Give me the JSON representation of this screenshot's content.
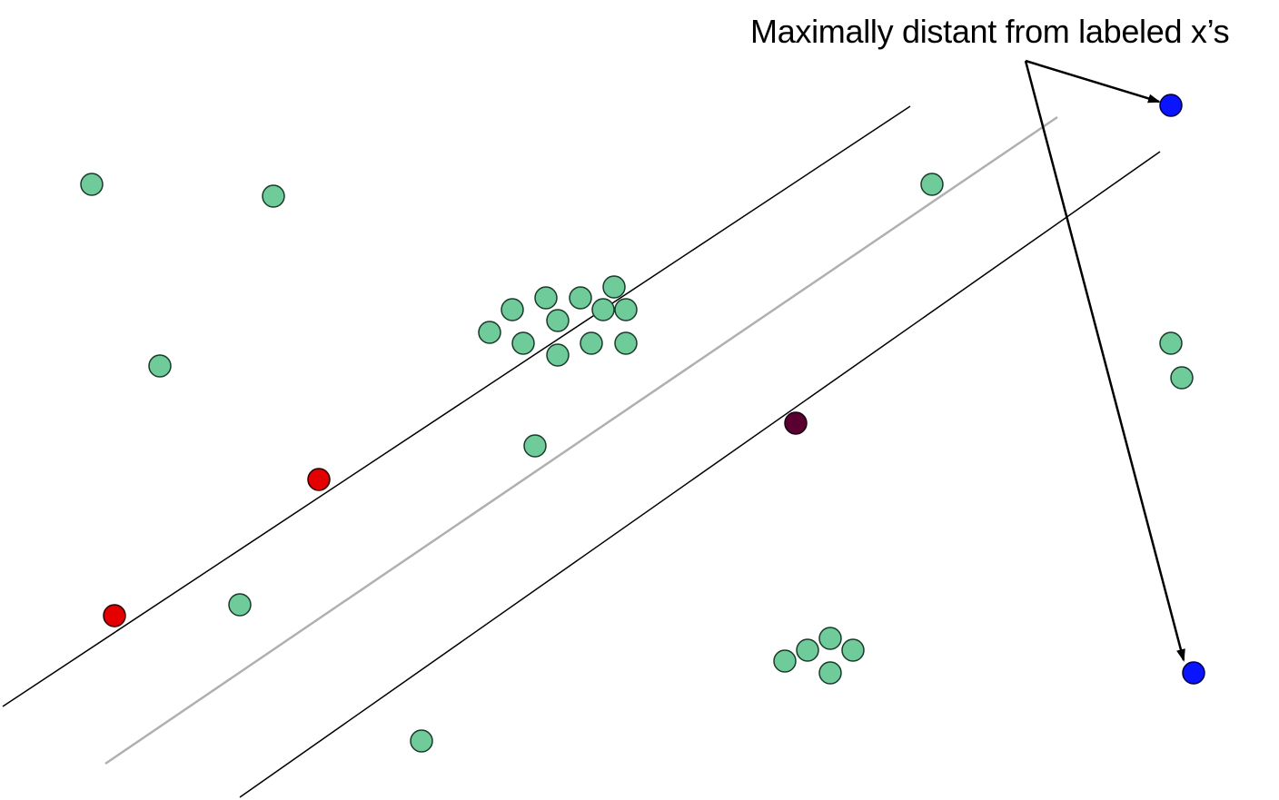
{
  "annotation": {
    "text": "Maximally distant from labeled x’s"
  },
  "colors": {
    "unlabeled": "#6fcb99",
    "labeled_red": "#e40000",
    "selected_blue": "#0a14ff",
    "dark_point": "#5a0030",
    "margin_line": "#000000",
    "separator_line": "#b0b0b0",
    "point_outline": "#1a3a2a"
  },
  "icons": {
    "arrow": "arrow-head-icon"
  }
}
